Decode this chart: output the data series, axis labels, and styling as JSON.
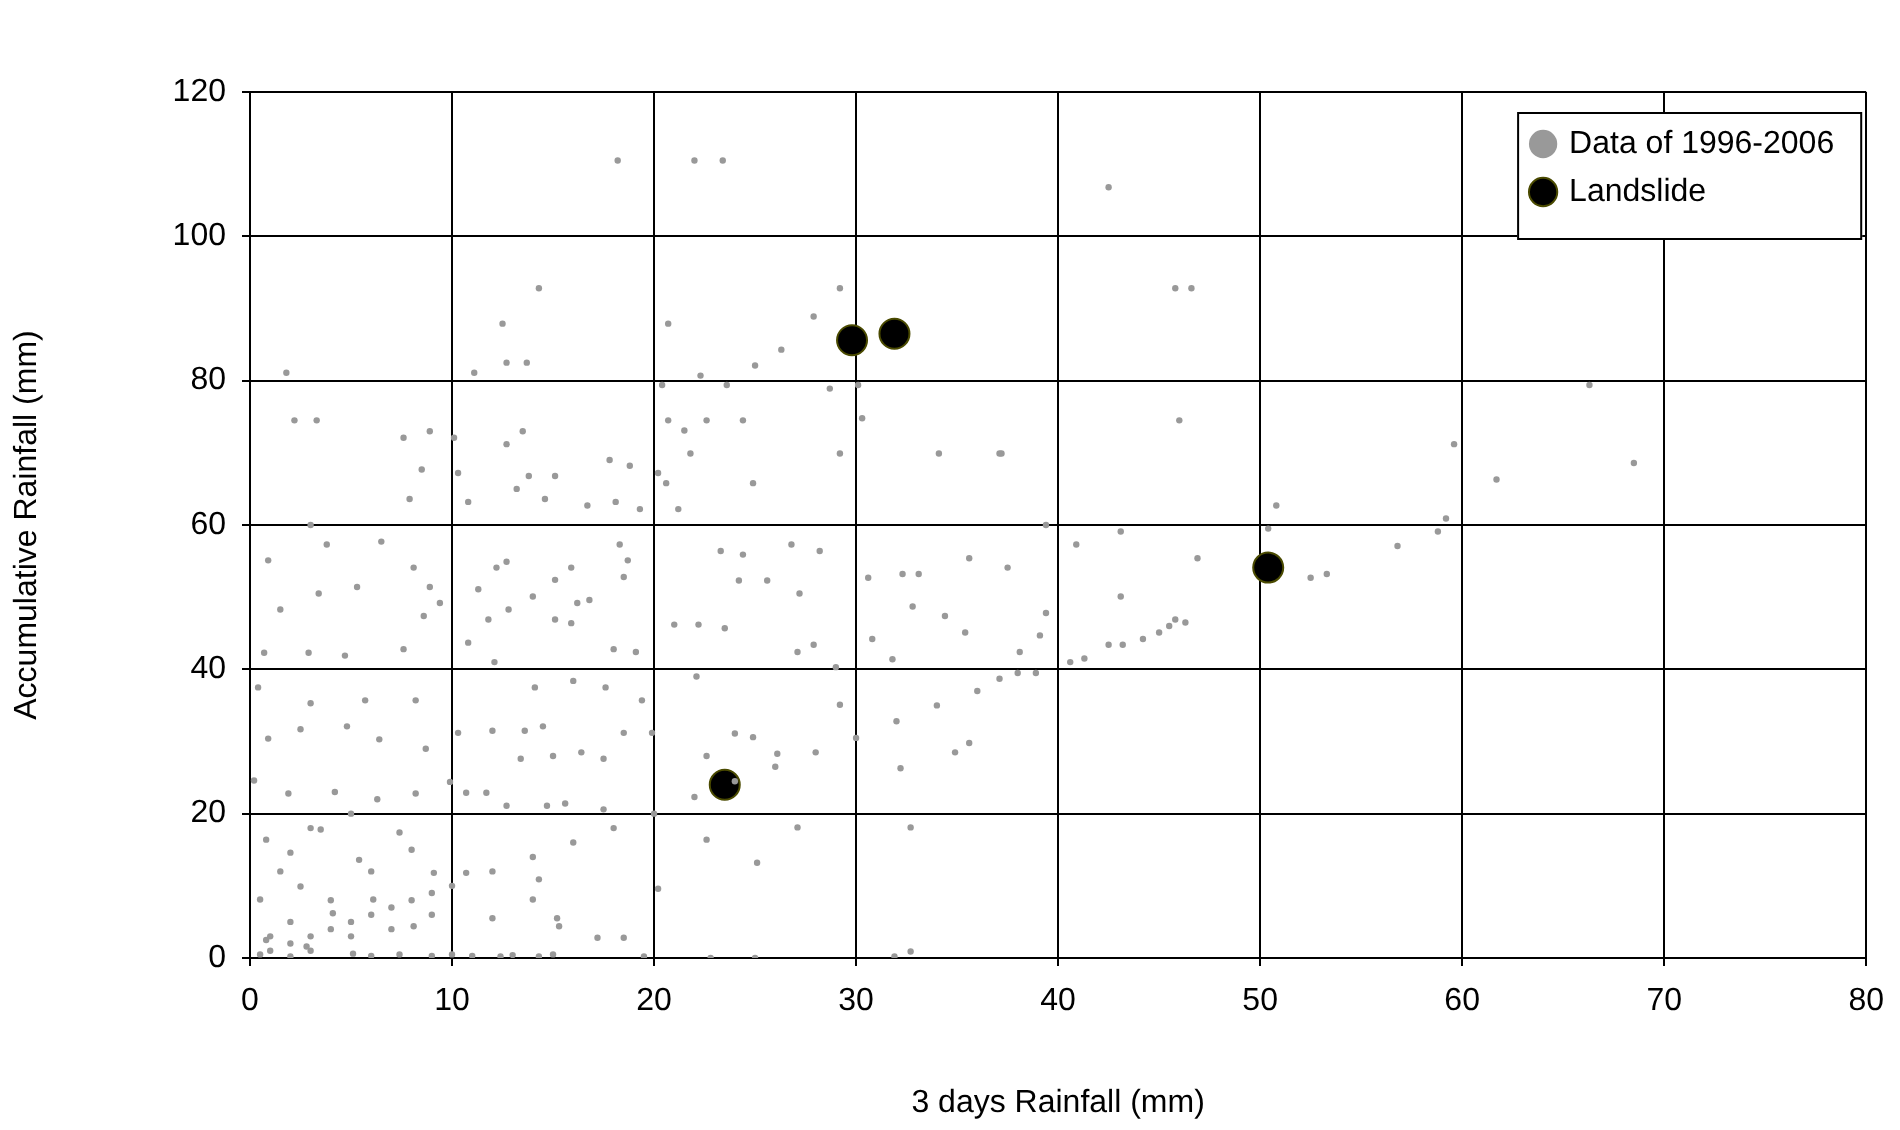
{
  "chart_data": {
    "type": "scatter",
    "xlabel": "3 days Rainfall (mm)",
    "ylabel": "Accumulative Rainfall (mm)",
    "xlim": [
      0,
      80
    ],
    "ylim": [
      0,
      120
    ],
    "xticks": [
      0,
      10,
      20,
      30,
      40,
      50,
      60,
      70,
      80
    ],
    "yticks": [
      0,
      20,
      40,
      60,
      80,
      100,
      120
    ],
    "grid": true,
    "legend": "top right",
    "marker": "circle",
    "series": [
      {
        "name": "Data of 1996-2006",
        "color": "#999999",
        "x": [
          1,
          2,
          3,
          4,
          5,
          6,
          7,
          8,
          9,
          10,
          12,
          14,
          16,
          18,
          20,
          22,
          24,
          26,
          28,
          30,
          32,
          34,
          36,
          38,
          0.5,
          1,
          2,
          3,
          4,
          5,
          6,
          7,
          8,
          9,
          1.5,
          3,
          5,
          2,
          6,
          9,
          10,
          11,
          13,
          15,
          18.2,
          22,
          23.4,
          14.3,
          12.5,
          12.7,
          13.7,
          11.1,
          1.8,
          2.2,
          3.3,
          7.6,
          8.9,
          10.1,
          8.5,
          10.3,
          7.9,
          10.8,
          12.7,
          13.5,
          13.8,
          13.2,
          14.6,
          15.1,
          16.7,
          17.8,
          18.8,
          18.1,
          19.3,
          20.2,
          20.6,
          21.2,
          20.7,
          22.3,
          23.6,
          20.4,
          20.7,
          21.5,
          22.6,
          24.4,
          21.8,
          24.9,
          25,
          26.3,
          27.9,
          29.2,
          28.7,
          30.1,
          30.3,
          29.2,
          34.1,
          37.1,
          42.5,
          45.8,
          46.6,
          46,
          37.2,
          59.6,
          61.7,
          66.3,
          68.5,
          50.8,
          59.2,
          39.4,
          50.4,
          52.5,
          53.3,
          56.8,
          58.8,
          46.9,
          43.1,
          39.4,
          39.1,
          38.1,
          37.5,
          40.9,
          43.1,
          37.1,
          38.9,
          40.6,
          41.3,
          42.5,
          43.2,
          44.2,
          45,
          45.5,
          45.8,
          46.3,
          23.3,
          24.4,
          26.8,
          28.2,
          24.2,
          25.6,
          27.2,
          30.6,
          32.3,
          33.1,
          35.6,
          32.8,
          34.4,
          35.4,
          30.8,
          31.8,
          34.9,
          35.6,
          32.2,
          32.7,
          32.7,
          27.1,
          25.1,
          22.6,
          20.2,
          29,
          29.2,
          26.1,
          24.9,
          22.6,
          21,
          22.2,
          23.5,
          22.1,
          24,
          27.1,
          27.9,
          0.9,
          3,
          3.8,
          6.5,
          8.1,
          1.5,
          3.4,
          5.3,
          8.9,
          9.4,
          8.6,
          0.7,
          2.9,
          4.7,
          7.6,
          0.4,
          3,
          5.7,
          8.2,
          0.9,
          2.5,
          4.8,
          6.4,
          8.7,
          0.2,
          1.9,
          4.2,
          6.3,
          8.2,
          9.9,
          0.8,
          2,
          3.5,
          5.4,
          7.4,
          9.1,
          0.5,
          2.5,
          4.1,
          6.1,
          8.1,
          0.8,
          2.8,
          5.1,
          7.4,
          11.3,
          12.2,
          12.7,
          14,
          15.9,
          15.1,
          18.3,
          18.7,
          18.5,
          16.2,
          16.8,
          10.8,
          11.8,
          12.8,
          15.1,
          15.9,
          18,
          19.1,
          12.1,
          14.1,
          16,
          17.6,
          19.4,
          10.3,
          12,
          13.6,
          14.5,
          18.5,
          19.9,
          13.4,
          15,
          16.4,
          17.5,
          10.7,
          11.7,
          12.7,
          14.7,
          15.6,
          17.5,
          10.7,
          14.3,
          12,
          14,
          15.2,
          17.2,
          18.5,
          15.3,
          12.4,
          14.3,
          19.5,
          22.8,
          25,
          31.9
        ],
        "values": [
          1,
          2,
          3,
          4,
          5,
          6,
          7,
          8,
          9,
          10,
          12,
          14,
          16,
          18,
          20,
          22.3,
          24.5,
          26.5,
          28.5,
          30.5,
          32.8,
          35,
          37,
          39.5,
          0.5,
          3,
          5,
          1,
          8,
          3,
          12,
          4,
          15,
          6,
          12,
          18,
          20,
          0.2,
          0.3,
          0.3,
          0.5,
          0.3,
          0.4,
          0.5,
          110.5,
          110.5,
          110.5,
          92.8,
          87.9,
          82.5,
          82.5,
          81.1,
          81.1,
          74.5,
          74.5,
          72.1,
          73,
          72.1,
          67.7,
          67.2,
          63.6,
          63.2,
          71.2,
          73,
          66.8,
          65,
          63.6,
          66.8,
          62.7,
          69,
          68.2,
          63.2,
          62.2,
          67.2,
          65.8,
          62.2,
          87.9,
          80.7,
          79.4,
          79.4,
          74.5,
          73.1,
          74.5,
          74.5,
          69.9,
          65.8,
          82.1,
          84.3,
          88.9,
          92.8,
          78.9,
          79.4,
          74.8,
          69.9,
          69.9,
          69.9,
          106.8,
          92.8,
          92.8,
          74.5,
          69.9,
          71.2,
          66.3,
          79.4,
          68.6,
          62.7,
          60.9,
          60,
          59.5,
          52.7,
          53.2,
          57.1,
          59.1,
          55.4,
          50.1,
          47.8,
          44.7,
          42.4,
          54.1,
          57.3,
          59.1,
          38.7,
          39.5,
          41,
          41.5,
          43.4,
          43.4,
          44.2,
          45.1,
          46,
          46.9,
          46.5,
          56.4,
          55.9,
          57.3,
          56.4,
          52.3,
          52.3,
          50.5,
          52.7,
          53.2,
          53.2,
          55.4,
          48.7,
          47.4,
          45.1,
          44.2,
          41.4,
          28.5,
          29.8,
          26.3,
          18.1,
          0.9,
          18.1,
          13.2,
          16.4,
          9.6,
          40.3,
          35.1,
          28.3,
          30.6,
          28,
          46.2,
          46.2,
          45.7,
          39,
          31.1,
          42.4,
          43.4,
          55.1,
          60,
          57.3,
          57.7,
          54.1,
          48.3,
          50.5,
          51.4,
          51.4,
          49.2,
          47.4,
          42.3,
          42.3,
          41.9,
          42.8,
          37.5,
          35.3,
          35.7,
          35.7,
          30.4,
          31.7,
          32.1,
          30.3,
          29,
          24.6,
          22.8,
          23,
          22,
          22.8,
          24.4,
          16.4,
          14.6,
          17.8,
          13.6,
          17.4,
          11.8,
          8.1,
          9.9,
          6.2,
          8.1,
          4.4,
          2.5,
          1.6,
          0.6,
          0.5,
          51.1,
          54.1,
          54.9,
          50.1,
          54.1,
          52.4,
          57.3,
          55.1,
          52.8,
          49.2,
          49.6,
          43.7,
          46.9,
          48.3,
          46.9,
          46.4,
          42.8,
          42.4,
          41,
          37.5,
          38.4,
          37.5,
          35.7,
          31.2,
          31.5,
          31.5,
          32.1,
          31.2,
          31.2,
          27.6,
          28,
          28.5,
          27.6,
          22.9,
          22.9,
          21.1,
          21.1,
          21.4,
          20.6,
          11.8,
          10.9,
          5.5,
          8.1,
          5.5,
          2.8,
          2.8,
          4.4,
          0.2,
          0.2,
          0.2,
          0,
          0,
          0.2
        ]
      },
      {
        "name": "Landslide",
        "color": "#000000",
        "x": [
          23.5,
          29.8,
          31.9,
          50.4
        ],
        "values": [
          24,
          85.6,
          86.5,
          54.1
        ]
      }
    ]
  }
}
